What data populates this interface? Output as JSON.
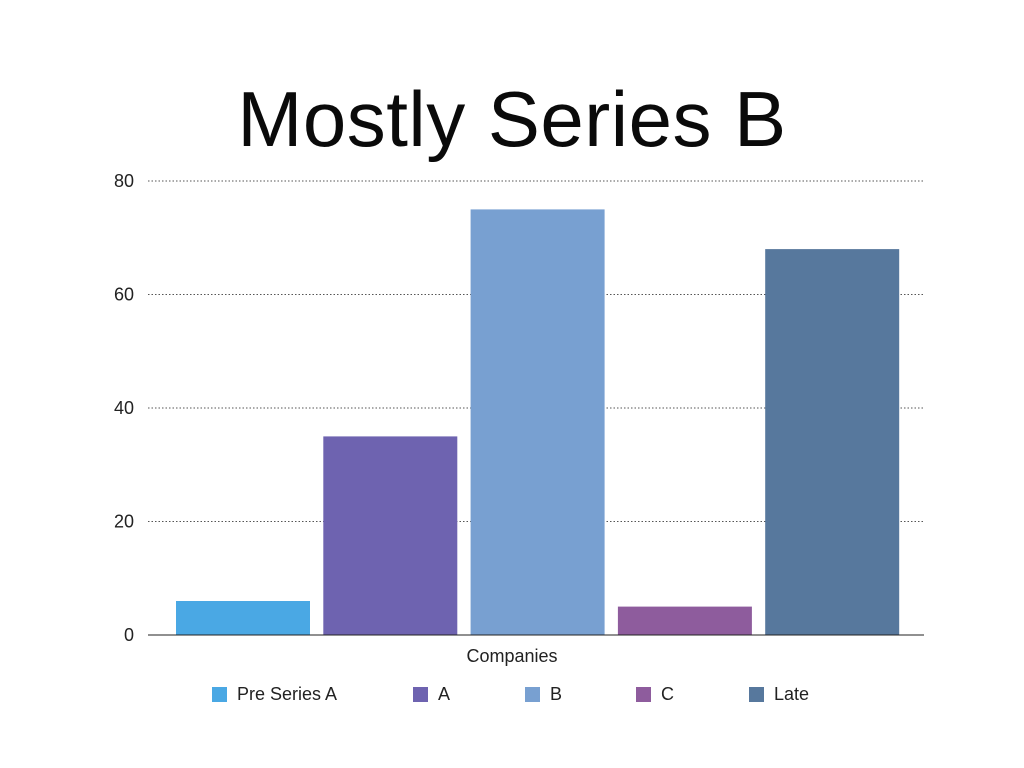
{
  "chart_data": {
    "type": "bar",
    "title": "Mostly Series B",
    "xlabel": "Companies",
    "ylabel": "",
    "ylim": [
      0,
      80
    ],
    "yticks": [
      0,
      20,
      40,
      60,
      80
    ],
    "grid": true,
    "legend_position": "bottom",
    "series": [
      {
        "name": "Pre Series A",
        "values": [
          6
        ],
        "color": "#4aa8e4"
      },
      {
        "name": "A",
        "values": [
          35
        ],
        "color": "#6e63b0"
      },
      {
        "name": "B",
        "values": [
          75
        ],
        "color": "#78a0d1"
      },
      {
        "name": "C",
        "values": [
          5
        ],
        "color": "#8e5c9d"
      },
      {
        "name": "Late",
        "values": [
          68
        ],
        "color": "#57789d"
      }
    ]
  }
}
